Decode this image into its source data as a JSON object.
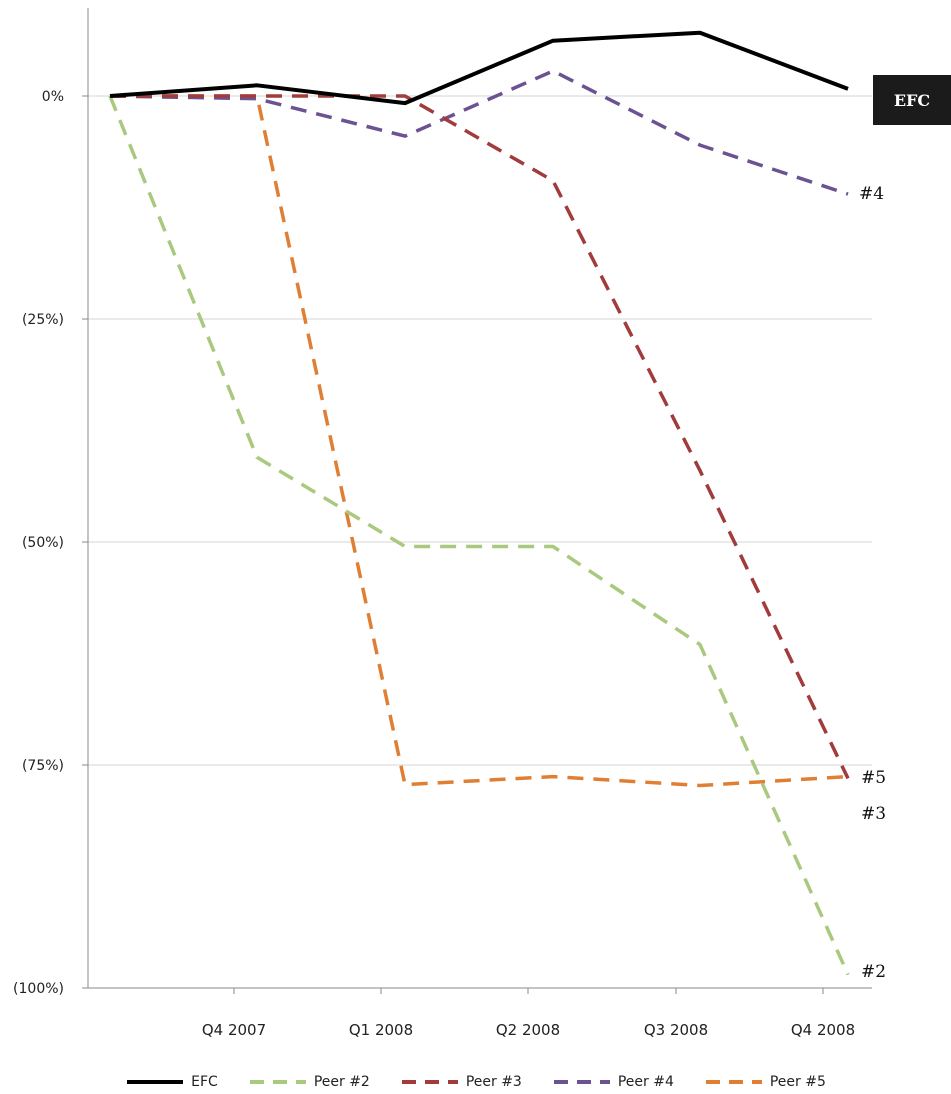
{
  "chart_data": {
    "type": "line",
    "title": "",
    "xlabel": "",
    "ylabel": "",
    "categories": [
      "",
      "Q4 2007",
      "Q1 2008",
      "Q2 2008",
      "Q3 2008",
      "Q4 2008"
    ],
    "ylim": [
      -100,
      0
    ],
    "y_ticks": [
      {
        "value": 0,
        "label": "0%"
      },
      {
        "value": -25,
        "label": "(25%)"
      },
      {
        "value": -50,
        "label": "(50%)"
      },
      {
        "value": -75,
        "label": "(75%)"
      },
      {
        "value": -100,
        "label": "(100%)"
      }
    ],
    "grid": true,
    "legend_position": "bottom",
    "series": [
      {
        "name": "EFC",
        "values": [
          0,
          1.2,
          -0.8,
          6.2,
          7.1,
          0.8
        ],
        "color": "#000000",
        "dashed": false,
        "end_label": "EFC"
      },
      {
        "name": "Peer #2",
        "values": [
          0,
          -40.5,
          -50.5,
          -50.5,
          -61.5,
          -98.5
        ],
        "color": "#A9C97F",
        "dashed": true,
        "end_label": "#2"
      },
      {
        "name": "Peer #3",
        "values": [
          0,
          0,
          0,
          -9.5,
          -42,
          -76.5
        ],
        "color": "#A23B3B",
        "dashed": true,
        "end_label": "#3"
      },
      {
        "name": "Peer #4",
        "values": [
          0,
          -0.3,
          -4.5,
          2.8,
          -5.5,
          -11
        ],
        "color": "#6B5292",
        "dashed": true,
        "end_label": "#4"
      },
      {
        "name": "Peer #5",
        "values": [
          0,
          0,
          -77.2,
          -76.3,
          -77.3,
          -76.3
        ],
        "color": "#E07F33",
        "dashed": true,
        "end_label": "#5"
      }
    ]
  }
}
